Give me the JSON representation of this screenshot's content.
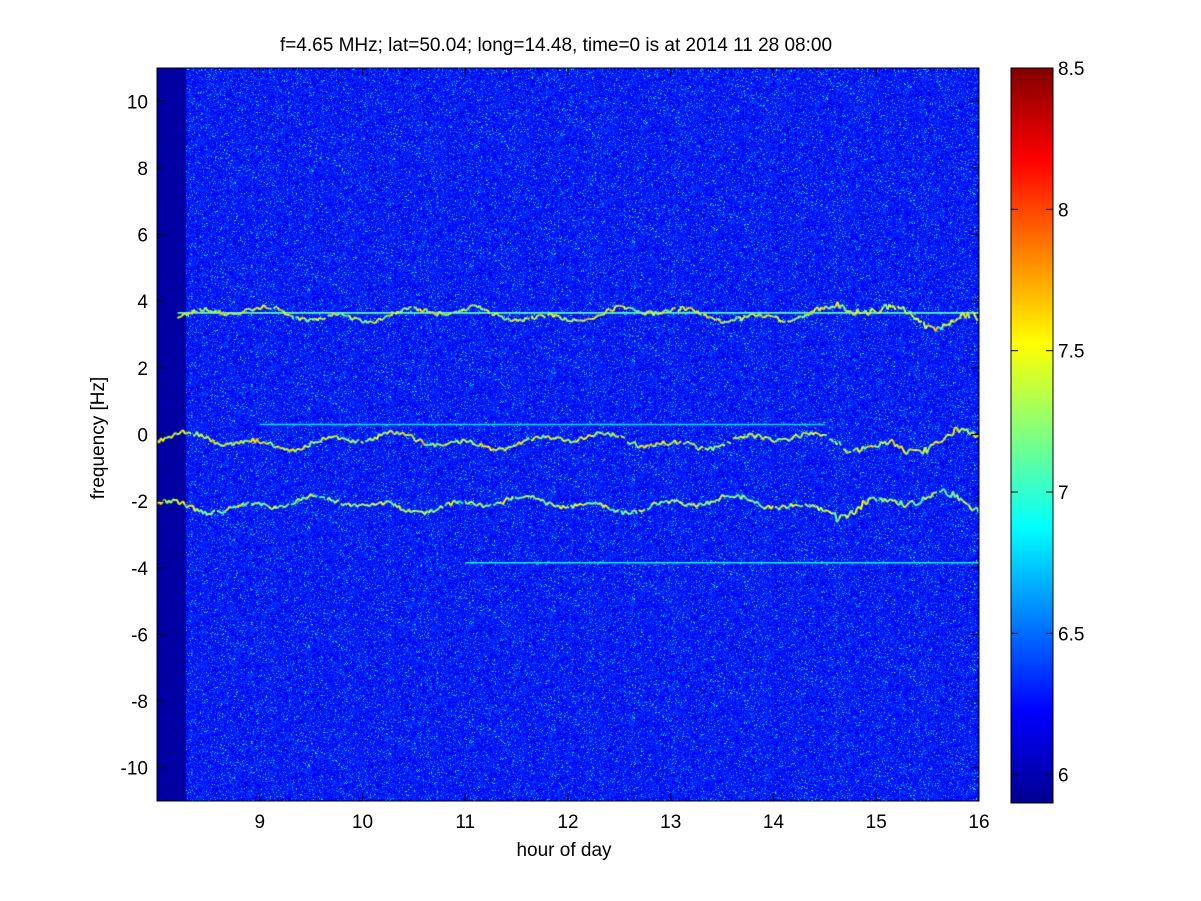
{
  "chart_data": {
    "type": "heatmap",
    "title": "f=4.65 MHz;  lat=50.04; long=14.48, time=0 is at 2014 11 28 08:00",
    "xlabel": "hour of day",
    "ylabel": "frequency [Hz]",
    "xlim": [
      8,
      16
    ],
    "ylim": [
      -11,
      11
    ],
    "xticks": [
      9,
      10,
      11,
      12,
      13,
      14,
      15,
      16
    ],
    "xtick_labels": [
      "9",
      "10",
      "11",
      "12",
      "13",
      "14",
      "15",
      "16"
    ],
    "yticks": [
      10,
      8,
      6,
      4,
      2,
      0,
      -2,
      -4,
      -6,
      -8,
      -10
    ],
    "ytick_labels": [
      "10",
      "8",
      "6",
      "4",
      "2",
      "0",
      "-2",
      "-4",
      "-6",
      "-8",
      "-10"
    ],
    "colorbar": {
      "colormap": "jet",
      "clim": [
        5.9,
        8.5
      ],
      "ticks": [
        8.5,
        8,
        7.5,
        7,
        6.5,
        6
      ],
      "tick_labels": [
        "8.5",
        "8",
        "7.5",
        "7",
        "6.5",
        "6"
      ]
    },
    "background_level": 6.2,
    "features": [
      {
        "kind": "constant-line",
        "freq_hz": 3.65,
        "x_range": [
          8.2,
          16
        ],
        "level": 7.1
      },
      {
        "kind": "doppler-trace",
        "freq_hz": 3.6,
        "x_range": [
          8.2,
          16
        ],
        "level": 7.4
      },
      {
        "kind": "doppler-trace",
        "freq_hz": -0.2,
        "x_range": [
          8.0,
          16
        ],
        "level": 7.4
      },
      {
        "kind": "doppler-trace",
        "freq_hz": -2.1,
        "x_range": [
          8.0,
          16
        ],
        "level": 7.3
      },
      {
        "kind": "constant-line",
        "freq_hz": 0.3,
        "x_range": [
          9.0,
          14.5
        ],
        "level": 6.8
      },
      {
        "kind": "constant-line",
        "freq_hz": -3.85,
        "x_range": [
          11.0,
          16
        ],
        "level": 6.9
      }
    ]
  }
}
